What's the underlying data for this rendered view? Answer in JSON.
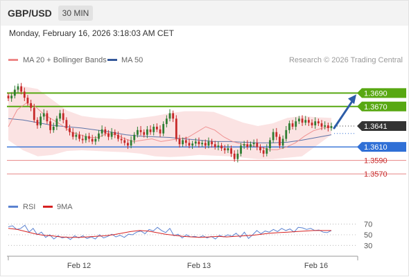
{
  "header": {
    "symbol": "GBP/USD",
    "timeframe": "30 MIN",
    "datetime": "Monday, February 16, 2026 3:18:03 AM CET"
  },
  "legend": {
    "bollinger": "MA 20 + Bollinger Bands",
    "ma50": "MA 50",
    "copyright": "Research © 2026 Trading Central",
    "rsi": "RSI",
    "rsi_ma": "9MA"
  },
  "colors": {
    "up_candle": "#2e7d32",
    "down_candle": "#c62828",
    "bollinger_fill": "#fadada",
    "ma20": "#ee8888",
    "ma50": "#35589a",
    "resistance": "#58a812",
    "support": "#2f6fd6",
    "support_light": "#e88484",
    "arrow": "#2d5da8",
    "rsi": "#5b82d0",
    "rsi_ma": "#d62222"
  },
  "chart_data": [
    {
      "type": "candlestick",
      "x_labels": [
        "Feb 12",
        "Feb 13",
        "Feb 16"
      ],
      "current_price": 1.3641,
      "ylim": [
        1.353,
        1.3715
      ],
      "levels": [
        {
          "label": "1.3690",
          "value": 1.369,
          "kind": "resistance"
        },
        {
          "label": "1.3670",
          "value": 1.367,
          "kind": "resistance"
        },
        {
          "label": "1.3641",
          "value": 1.3641,
          "kind": "current"
        },
        {
          "label": "1.3610",
          "value": 1.361,
          "kind": "pivot"
        },
        {
          "label": "1.3590",
          "value": 1.359,
          "kind": "support"
        },
        {
          "label": "1.3570",
          "value": 1.357,
          "kind": "support"
        }
      ],
      "closes": [
        1.3682,
        1.3686,
        1.3695,
        1.37,
        1.3692,
        1.3683,
        1.3675,
        1.3668,
        1.365,
        1.3642,
        1.3655,
        1.366,
        1.3648,
        1.3635,
        1.364,
        1.3652,
        1.366,
        1.365,
        1.3638,
        1.3632,
        1.3625,
        1.3628,
        1.3622,
        1.362,
        1.3626,
        1.3622,
        1.3618,
        1.3622,
        1.363,
        1.3636,
        1.363,
        1.3625,
        1.3632,
        1.3628,
        1.3622,
        1.362,
        1.3616,
        1.3612,
        1.362,
        1.3628,
        1.3635,
        1.3632,
        1.3628,
        1.3636,
        1.3632,
        1.364,
        1.3636,
        1.363,
        1.3644,
        1.3652,
        1.366,
        1.3652,
        1.3622,
        1.3614,
        1.362,
        1.3616,
        1.3612,
        1.3615,
        1.3618,
        1.3614,
        1.3616,
        1.3612,
        1.3618,
        1.3614,
        1.361,
        1.3612,
        1.3608,
        1.3605,
        1.3608,
        1.36,
        1.3592,
        1.36,
        1.3612,
        1.3614,
        1.361,
        1.3614,
        1.3616,
        1.361,
        1.3605,
        1.36,
        1.3608,
        1.362,
        1.3632,
        1.3625,
        1.3612,
        1.3622,
        1.3635,
        1.3645,
        1.364,
        1.3648,
        1.3652,
        1.3646,
        1.365,
        1.3646,
        1.3642,
        1.3648,
        1.3645,
        1.364,
        1.3642,
        1.3638,
        1.3641
      ],
      "ma20": [
        1.364,
        1.3665,
        1.3675,
        1.367,
        1.3658,
        1.365,
        1.3642,
        1.3632,
        1.3628,
        1.3624,
        1.3624,
        1.363,
        1.3628,
        1.3622,
        1.3618,
        1.362,
        1.3622,
        1.3618,
        1.362,
        1.3622,
        1.3624,
        1.3632,
        1.364,
        1.3635,
        1.3625,
        1.3618,
        1.3614,
        1.3612,
        1.361,
        1.3606,
        1.3606,
        1.361,
        1.3616,
        1.3626,
        1.3634,
        1.3638,
        1.364
      ],
      "ma50": [
        1.3652,
        1.365,
        1.3646,
        1.3642,
        1.364,
        1.3638,
        1.3635,
        1.3632,
        1.3628,
        1.3626,
        1.3625,
        1.3624,
        1.3622,
        1.362,
        1.3618,
        1.3618,
        1.3617,
        1.3616,
        1.3616,
        1.3617,
        1.362,
        1.3624,
        1.3628
      ],
      "bb_upper": [
        1.369,
        1.37,
        1.3696,
        1.368,
        1.3664,
        1.3656,
        1.3653,
        1.3652,
        1.3651,
        1.3653,
        1.3656,
        1.366,
        1.3663,
        1.3663,
        1.3662,
        1.3654,
        1.3646,
        1.3641,
        1.3645,
        1.3653,
        1.3656,
        1.3654,
        1.3653
      ],
      "bb_lower": [
        1.362,
        1.3605,
        1.3596,
        1.3598,
        1.3604,
        1.3605,
        1.3604,
        1.3603,
        1.3602,
        1.36,
        1.3596,
        1.3595,
        1.3596,
        1.3598,
        1.3597,
        1.3596,
        1.3594,
        1.3592,
        1.3592,
        1.3594,
        1.3596,
        1.3612,
        1.3628
      ],
      "projection": {
        "from": 1.3641,
        "to": 1.369
      }
    },
    {
      "type": "line",
      "name": "RSI",
      "ylim": [
        20,
        80
      ],
      "y_ticks": [
        70,
        50,
        30
      ],
      "rsi": [
        65,
        67,
        60,
        62,
        68,
        55,
        62,
        50,
        55,
        45,
        50,
        42,
        48,
        44,
        46,
        41,
        48,
        44,
        48,
        43,
        46,
        42,
        50,
        44,
        47,
        51,
        46,
        49,
        45,
        51,
        50,
        55,
        57,
        52,
        60,
        57,
        64,
        58,
        54,
        62,
        48,
        51,
        44,
        50,
        46,
        47,
        45,
        48,
        44,
        47,
        42,
        49,
        46,
        50,
        47,
        53,
        45,
        55,
        43,
        50,
        58,
        52,
        57,
        55,
        60,
        56,
        62,
        58,
        61,
        55,
        64,
        63,
        60,
        62,
        58,
        59,
        55,
        54,
        58
      ],
      "rsi_ma": [
        62,
        60,
        56,
        52,
        49,
        48,
        46,
        45,
        45,
        46,
        47,
        48,
        50,
        53,
        56,
        58,
        57,
        54,
        51,
        49,
        47,
        46,
        45,
        46,
        47,
        46,
        47,
        48,
        49,
        51,
        53,
        54,
        55,
        56,
        57,
        58,
        58,
        58
      ]
    }
  ]
}
